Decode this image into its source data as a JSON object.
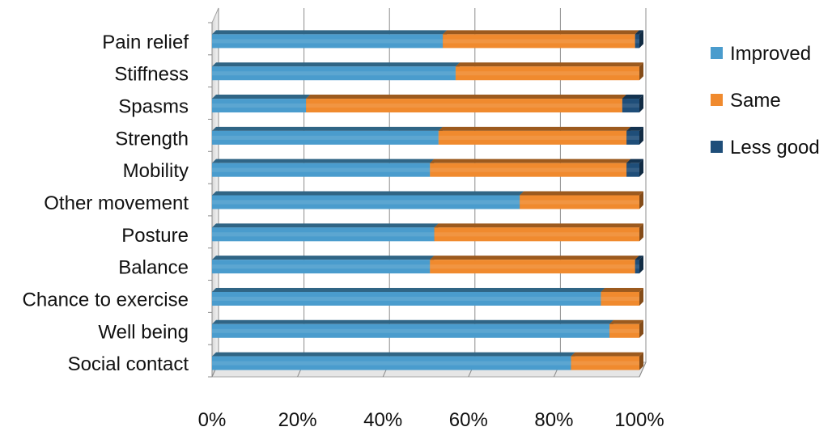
{
  "chart_data": {
    "type": "bar",
    "orientation": "horizontal",
    "stacked": "percent",
    "categories": [
      "Pain relief",
      "Stiffness",
      "Spasms",
      "Strength",
      "Mobility",
      "Other movement",
      "Posture",
      "Balance",
      "Chance to exercise",
      "Well being",
      "Social contact"
    ],
    "series": [
      {
        "name": "Improved",
        "color": "#4a9ccd",
        "values": [
          54,
          57,
          22,
          53,
          51,
          72,
          52,
          51,
          91,
          93,
          84
        ]
      },
      {
        "name": "Same",
        "color": "#f08a2e",
        "values": [
          45,
          43,
          74,
          44,
          46,
          28,
          48,
          48,
          9,
          7,
          16
        ]
      },
      {
        "name": "Less good",
        "color": "#1f4e79",
        "values": [
          1,
          0,
          4,
          3,
          3,
          0,
          0,
          1,
          0,
          0,
          0
        ]
      }
    ],
    "x_ticks": [
      "0%",
      "20%",
      "40%",
      "60%",
      "80%",
      "100%"
    ],
    "xlim": [
      0,
      100
    ],
    "grid": true,
    "legend_position": "right",
    "title": "",
    "xlabel": "",
    "ylabel": ""
  }
}
